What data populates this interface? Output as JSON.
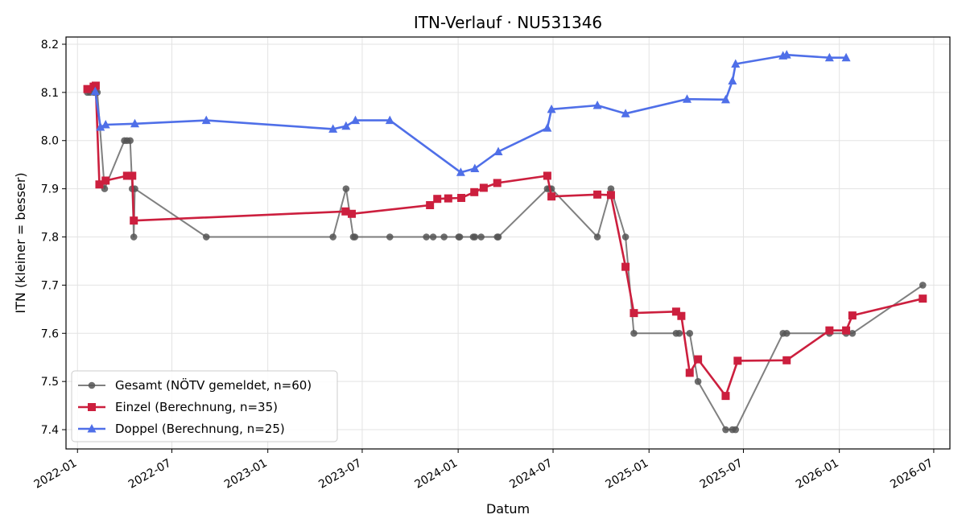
{
  "chart_data": {
    "type": "line",
    "title": "ITN-Verlauf · NU531346",
    "xlabel": "Datum",
    "ylabel": "ITN  (kleiner = besser)",
    "x_ticks": [
      "2022-01",
      "2022-07",
      "2023-01",
      "2023-07",
      "2024-01",
      "2024-07",
      "2025-01",
      "2025-07",
      "2026-01",
      "2026-07"
    ],
    "y_ticks": [
      "7.4",
      "7.5",
      "7.6",
      "7.7",
      "7.8",
      "7.9",
      "8.0",
      "8.1",
      "8.2"
    ],
    "xlim": [
      "2021-12-10",
      "2026-08-01"
    ],
    "ylim": [
      7.36,
      8.215
    ],
    "grid": true,
    "legend_position": "lower-left",
    "series": [
      {
        "name": "Gesamt (NÖTV gemeldet, n=60)",
        "color": "#555555",
        "marker": "circle",
        "points": [
          [
            "2022-01-20",
            8.1
          ],
          [
            "2022-01-25",
            8.1
          ],
          [
            "2022-02-01",
            8.1
          ],
          [
            "2022-02-05",
            8.1
          ],
          [
            "2022-02-08",
            8.1
          ],
          [
            "2022-02-22",
            7.9
          ],
          [
            "2022-04-01",
            8.0
          ],
          [
            "2022-04-06",
            8.0
          ],
          [
            "2022-04-12",
            8.0
          ],
          [
            "2022-04-16",
            7.9
          ],
          [
            "2022-04-19",
            7.8
          ],
          [
            "2022-04-21",
            7.9
          ],
          [
            "2022-09-05",
            7.8
          ],
          [
            "2023-05-06",
            7.8
          ],
          [
            "2023-05-31",
            7.9
          ],
          [
            "2023-06-14",
            7.8
          ],
          [
            "2023-06-17",
            7.8
          ],
          [
            "2023-08-23",
            7.8
          ],
          [
            "2023-11-01",
            7.8
          ],
          [
            "2023-11-14",
            7.8
          ],
          [
            "2023-12-05",
            7.8
          ],
          [
            "2024-01-02",
            7.8
          ],
          [
            "2024-01-04",
            7.8
          ],
          [
            "2024-01-30",
            7.8
          ],
          [
            "2024-02-02",
            7.8
          ],
          [
            "2024-02-14",
            7.8
          ],
          [
            "2024-03-16",
            7.8
          ],
          [
            "2024-03-18",
            7.8
          ],
          [
            "2024-06-20",
            7.9
          ],
          [
            "2024-06-24",
            7.9
          ],
          [
            "2024-06-28",
            7.9
          ],
          [
            "2024-09-24",
            7.8
          ],
          [
            "2024-10-20",
            7.9
          ],
          [
            "2024-11-17",
            7.8
          ],
          [
            "2024-12-03",
            7.6
          ],
          [
            "2025-02-22",
            7.6
          ],
          [
            "2025-02-28",
            7.6
          ],
          [
            "2025-03-20",
            7.6
          ],
          [
            "2025-04-05",
            7.5
          ],
          [
            "2025-05-28",
            7.4
          ],
          [
            "2025-06-10",
            7.4
          ],
          [
            "2025-06-16",
            7.4
          ],
          [
            "2025-09-15",
            7.6
          ],
          [
            "2025-09-22",
            7.6
          ],
          [
            "2025-12-13",
            7.6
          ],
          [
            "2026-01-14",
            7.6
          ],
          [
            "2026-01-26",
            7.6
          ],
          [
            "2026-06-10",
            7.7
          ]
        ]
      },
      {
        "name": "Einzel (Berechnung, n=35)",
        "color": "#cc1f3e",
        "marker": "square",
        "points": [
          [
            "2022-01-20",
            8.107
          ],
          [
            "2022-02-01",
            8.112
          ],
          [
            "2022-02-05",
            8.114
          ],
          [
            "2022-02-12",
            7.909
          ],
          [
            "2022-02-24",
            7.917
          ],
          [
            "2022-04-06",
            7.927
          ],
          [
            "2022-04-16",
            7.927
          ],
          [
            "2022-04-19",
            7.834
          ],
          [
            "2023-05-30",
            7.853
          ],
          [
            "2023-06-11",
            7.848
          ],
          [
            "2023-11-08",
            7.866
          ],
          [
            "2023-11-22",
            7.879
          ],
          [
            "2023-12-13",
            7.88
          ],
          [
            "2024-01-07",
            7.881
          ],
          [
            "2024-02-01",
            7.893
          ],
          [
            "2024-02-19",
            7.902
          ],
          [
            "2024-03-16",
            7.912
          ],
          [
            "2024-06-20",
            7.927
          ],
          [
            "2024-06-28",
            7.884
          ],
          [
            "2024-09-24",
            7.888
          ],
          [
            "2024-10-20",
            7.887
          ],
          [
            "2024-11-17",
            7.738
          ],
          [
            "2024-12-03",
            7.642
          ],
          [
            "2025-02-22",
            7.645
          ],
          [
            "2025-03-04",
            7.636
          ],
          [
            "2025-03-20",
            7.518
          ],
          [
            "2025-04-05",
            7.546
          ],
          [
            "2025-05-28",
            7.47
          ],
          [
            "2025-06-20",
            7.543
          ],
          [
            "2025-09-22",
            7.544
          ],
          [
            "2025-12-13",
            7.606
          ],
          [
            "2026-01-14",
            7.606
          ],
          [
            "2026-01-26",
            7.637
          ],
          [
            "2026-06-10",
            7.672
          ]
        ]
      },
      {
        "name": "Doppel (Berechnung, n=25)",
        "color": "#4f6fe8",
        "marker": "triangle",
        "points": [
          [
            "2022-02-04",
            8.102
          ],
          [
            "2022-02-14",
            8.028
          ],
          [
            "2022-02-24",
            8.033
          ],
          [
            "2022-04-21",
            8.035
          ],
          [
            "2022-09-05",
            8.042
          ],
          [
            "2023-05-06",
            8.024
          ],
          [
            "2023-05-31",
            8.03
          ],
          [
            "2023-06-18",
            8.042
          ],
          [
            "2023-08-23",
            8.042
          ],
          [
            "2024-01-06",
            7.934
          ],
          [
            "2024-02-02",
            7.942
          ],
          [
            "2024-03-18",
            7.977
          ],
          [
            "2024-06-20",
            8.026
          ],
          [
            "2024-06-28",
            8.065
          ],
          [
            "2024-09-24",
            8.073
          ],
          [
            "2024-11-17",
            8.056
          ],
          [
            "2025-03-15",
            8.086
          ],
          [
            "2025-05-28",
            8.085
          ],
          [
            "2025-06-10",
            8.124
          ],
          [
            "2025-06-16",
            8.159
          ],
          [
            "2025-09-15",
            8.176
          ],
          [
            "2025-09-22",
            8.178
          ],
          [
            "2025-12-13",
            8.172
          ],
          [
            "2026-01-14",
            8.172
          ]
        ]
      }
    ]
  }
}
